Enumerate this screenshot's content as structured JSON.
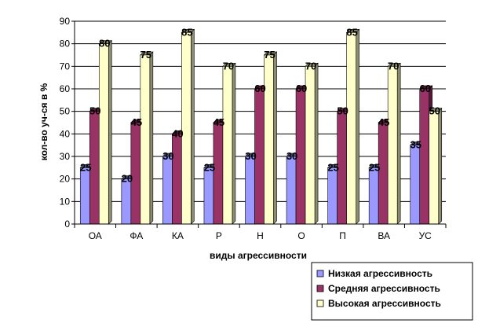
{
  "chart_data": {
    "type": "bar",
    "title": "",
    "xlabel": "виды агрессивности",
    "ylabel": "кол-во уч-ся в %",
    "ylim": [
      0,
      90
    ],
    "yticks": [
      0,
      10,
      20,
      30,
      40,
      50,
      60,
      70,
      80,
      90
    ],
    "grid": true,
    "legend_position": "bottom-right",
    "categories": [
      "ОА",
      "ФА",
      "КА",
      "Р",
      "Н",
      "О",
      "П",
      "ВА",
      "УС"
    ],
    "series": [
      {
        "name": "Низкая агрессивность",
        "color": "#9999ff",
        "values": [
          25,
          20,
          30,
          25,
          30,
          30,
          25,
          25,
          35
        ]
      },
      {
        "name": "Средняя агрессивность",
        "color": "#993366",
        "values": [
          50,
          45,
          40,
          45,
          60,
          60,
          50,
          45,
          60
        ]
      },
      {
        "name": "Высокая агрессивность",
        "color": "#ffffcc",
        "values": [
          80,
          75,
          85,
          70,
          75,
          70,
          85,
          70,
          50
        ]
      }
    ]
  }
}
